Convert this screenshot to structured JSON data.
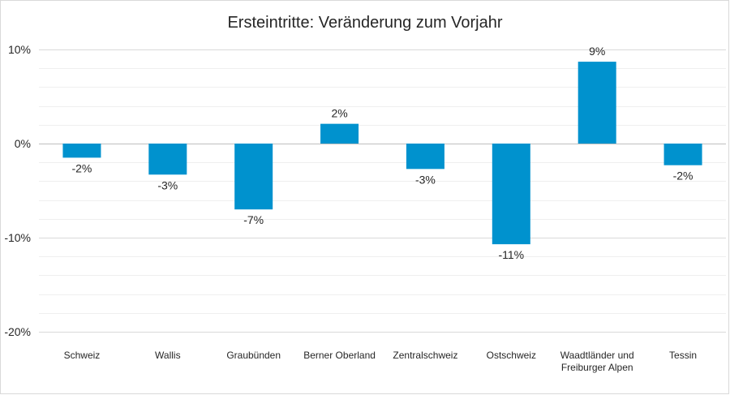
{
  "chart_data": {
    "type": "bar",
    "title": "Ersteintritte: Veränderung zum Vorjahr",
    "xlabel": "",
    "ylabel": "",
    "categories": [
      [
        "Schweiz"
      ],
      [
        "Wallis"
      ],
      [
        "Graubünden"
      ],
      [
        "Berner Oberland"
      ],
      [
        "Zentralschweiz"
      ],
      [
        "Ostschweiz"
      ],
      [
        "Waadtländer und",
        "Freiburger Alpen"
      ],
      [
        "Tessin"
      ]
    ],
    "values": [
      -1.5,
      -3.3,
      -7.0,
      2.1,
      -2.7,
      -10.7,
      8.7,
      -2.3
    ],
    "data_labels": [
      "-2%",
      "-3%",
      "-7%",
      "2%",
      "-3%",
      "-11%",
      "9%",
      "-2%"
    ],
    "ylim": [
      -20,
      10
    ],
    "yticks": [
      10,
      0,
      -10,
      -20
    ],
    "ytick_labels": [
      "10%",
      "0%",
      "-10%",
      "-20%"
    ],
    "minor_grid_step": 2,
    "grid": true,
    "legend": "none",
    "bar_color": "#0092CE"
  }
}
